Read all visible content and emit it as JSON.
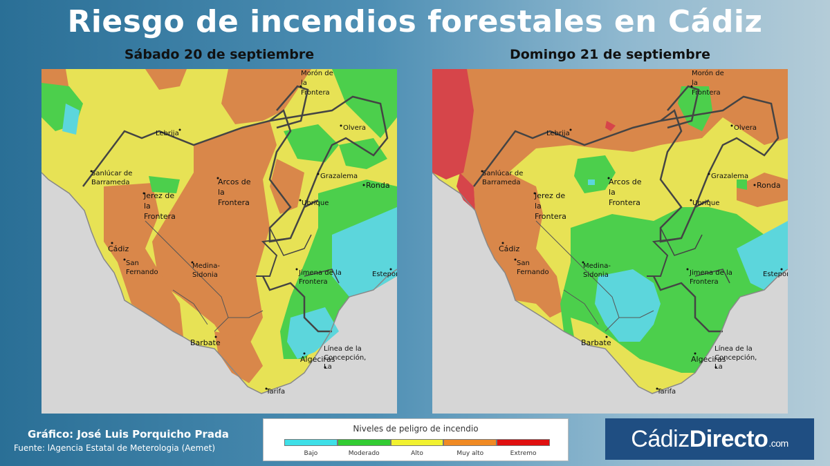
{
  "title": "Riesgo de incendios forestales en Cádiz",
  "maps": [
    {
      "day_label": "Sábado 20 de septiembre",
      "places": [
        "Morón de",
        "la",
        "Frontera",
        "Lebrija",
        "Olvera",
        "Sanlúcar de",
        "Barrameda",
        "Grazalema",
        "Arcos de",
        "la",
        "Frontera",
        "Ronda",
        "Jerez de",
        "la",
        "Frontera",
        "Ubrique",
        "Cádiz",
        "San",
        "Fernando",
        "Medina-",
        "Sidonia",
        "Jimena de la",
        "Frontera",
        "Estepona",
        "Barbate",
        "Línea de la",
        "Concepción,",
        "La",
        "Algeciras",
        "Tarifa"
      ]
    },
    {
      "day_label": "Domingo 21 de septiembre",
      "places": [
        "Morón de",
        "la",
        "Frontera",
        "Lebrija",
        "Olvera",
        "Sanlúcar de",
        "Barrameda",
        "Grazalema",
        "Arcos de",
        "la",
        "Frontera",
        "Ronda",
        "Jerez de",
        "la",
        "Frontera",
        "Ubrique",
        "Cádiz",
        "San",
        "Fernando",
        "Medina-",
        "Sidonia",
        "Jimena de la",
        "Frontera",
        "Estepona",
        "Barbate",
        "Línea de la",
        "Concepción,",
        "La",
        "Algeciras",
        "Tarifa"
      ]
    }
  ],
  "legend": {
    "title": "Niveles de peligro de incendio",
    "levels": [
      {
        "label": "Bajo",
        "color": "#3fe0e8"
      },
      {
        "label": "Moderado",
        "color": "#33cc33"
      },
      {
        "label": "Alto",
        "color": "#f2f230"
      },
      {
        "label": "Muy alto",
        "color": "#f08a24"
      },
      {
        "label": "Extremo",
        "color": "#e01010"
      }
    ]
  },
  "credits": {
    "author": "Gráfico: José Luis Porquicho Prada",
    "source": "Fuente:  lAgencia Estatal de Meterologia (Aemet)"
  },
  "brand": {
    "part1": "Cádiz",
    "part2": "Directo",
    "suffix": ".com"
  },
  "colors": {
    "bajo": "#5cd6dc",
    "moderado": "#4ccf4c",
    "alto": "#e7e255",
    "muy_alto": "#d9874a",
    "extremo": "#d6454a",
    "sea": "#d6d6d6"
  }
}
